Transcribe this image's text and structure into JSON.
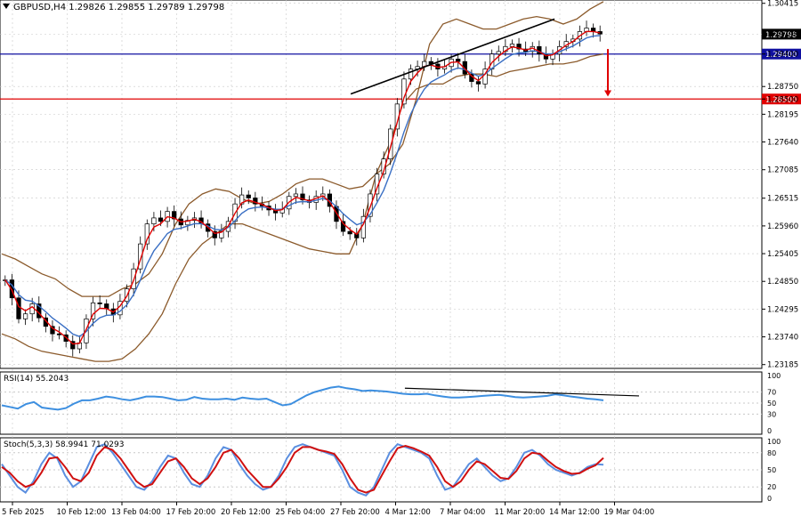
{
  "header": {
    "symbol_line": "GBPUSD,H4  1.29826 1.29855 1.29789 1.29798"
  },
  "colors": {
    "bg": "#ffffff",
    "grid": "#c8c8c8",
    "candle": "#000000",
    "ema_fast": "#e00000",
    "ema_slow": "#3a6fc4",
    "bollinger": "#8b5a2b",
    "resistance": "#1010a0",
    "support": "#e00000",
    "trend": "#000000",
    "rsi": "#3d8fe0",
    "stoch_main": "#5b8fe0",
    "stoch_signal": "#d01010",
    "price_tag_current": "#000000",
    "price_tag_blue": "#1010a0",
    "price_tag_red": "#e00000"
  },
  "chart_data": [
    {
      "type": "candlestick",
      "title": "GBPUSD,H4",
      "ohlc_last": {
        "open": 1.29826,
        "high": 1.29855,
        "low": 1.29789,
        "close": 1.29798
      },
      "ylim": [
        1.2318,
        1.3041
      ],
      "y_ticks": [
        "1.30415",
        "1.29798",
        "1.29400",
        "1.28750",
        "1.28500",
        "1.28195",
        "1.27640",
        "1.27085",
        "1.26515",
        "1.25960",
        "1.25405",
        "1.24850",
        "1.24295",
        "1.23740",
        "1.23185"
      ],
      "x_ticks": [
        "5 Feb 2025",
        "10 Feb 12:00",
        "13 Feb 04:00",
        "17 Feb 20:00",
        "20 Feb 12:00",
        "25 Feb 04:00",
        "27 Feb 20:00",
        "4 Mar 12:00",
        "7 Mar 04:00",
        "11 Mar 20:00",
        "14 Mar 12:00",
        "19 Mar 04:00"
      ],
      "close_path": [
        1.2488,
        1.2452,
        1.241,
        1.242,
        1.244,
        1.2412,
        1.2395,
        1.238,
        1.2378,
        1.2365,
        1.235,
        1.2362,
        1.241,
        1.2442,
        1.244,
        1.243,
        1.2418,
        1.2445,
        1.247,
        1.251,
        1.256,
        1.26,
        1.2612,
        1.2605,
        1.2625,
        1.261,
        1.2598,
        1.2607,
        1.2612,
        1.26,
        1.2585,
        1.2572,
        1.2585,
        1.2605,
        1.264,
        1.2658,
        1.2652,
        1.264,
        1.2636,
        1.2628,
        1.2622,
        1.263,
        1.2655,
        1.266,
        1.2648,
        1.2643,
        1.2655,
        1.266,
        1.2635,
        1.2605,
        1.2585,
        1.258,
        1.2572,
        1.2615,
        1.266,
        1.27,
        1.273,
        1.279,
        1.284,
        1.289,
        1.291,
        1.2915,
        1.2925,
        1.292,
        1.291,
        1.2915,
        1.293,
        1.2925,
        1.29,
        1.2885,
        1.288,
        1.291,
        1.294,
        1.2945,
        1.2955,
        1.296,
        1.295,
        1.2945,
        1.2955,
        1.294,
        1.293,
        1.294,
        1.2955,
        1.2965,
        1.297,
        1.2985,
        1.2992,
        1.2985,
        1.298
      ],
      "bollinger_upper_path": [
        1.254,
        1.253,
        1.2515,
        1.25,
        1.249,
        1.247,
        1.2455,
        1.2455,
        1.2455,
        1.247,
        1.248,
        1.25,
        1.254,
        1.26,
        1.264,
        1.266,
        1.267,
        1.2665,
        1.265,
        1.264,
        1.2645,
        1.266,
        1.268,
        1.269,
        1.269,
        1.268,
        1.267,
        1.2675,
        1.27,
        1.272,
        1.276,
        1.285,
        1.296,
        1.3,
        1.301,
        1.3,
        1.299,
        1.299,
        1.3,
        1.301,
        1.3015,
        1.301,
        1.3,
        1.301,
        1.303,
        1.3045
      ],
      "bollinger_lower_path": [
        1.238,
        1.237,
        1.2355,
        1.2345,
        1.234,
        1.2335,
        1.233,
        1.2325,
        1.2325,
        1.233,
        1.235,
        1.238,
        1.242,
        1.248,
        1.253,
        1.256,
        1.258,
        1.26,
        1.26,
        1.259,
        1.258,
        1.257,
        1.256,
        1.255,
        1.2545,
        1.254,
        1.254,
        1.26,
        1.27,
        1.276,
        1.284,
        1.287,
        1.288,
        1.288,
        1.2895,
        1.29,
        1.29,
        1.2895,
        1.2905,
        1.291,
        1.2915,
        1.292,
        1.292,
        1.2925,
        1.2935,
        1.294
      ],
      "levels": [
        {
          "label": "1.29400",
          "value": 1.294,
          "color_key": "resistance"
        },
        {
          "label": "1.28500",
          "value": 1.285,
          "color_key": "support"
        }
      ],
      "current_price": {
        "label": "1.29798",
        "value": 1.29798
      },
      "trendline": {
        "from": {
          "index": 0.58,
          "value": 1.286
        },
        "to": {
          "index": 0.83,
          "value": 1.301
        }
      },
      "arrow": {
        "from_value": 1.295,
        "to_value": 1.2855,
        "color_key": "support"
      }
    },
    {
      "type": "line",
      "title": "RSI(14) 55.2043",
      "ylim": [
        0,
        100
      ],
      "y_ticks": [
        "100",
        "70",
        "50",
        "30",
        "0"
      ],
      "levels": [
        70,
        50,
        30
      ],
      "values": [
        46,
        43,
        40,
        48,
        52,
        42,
        40,
        38,
        41,
        49,
        55,
        55,
        58,
        62,
        60,
        57,
        55,
        58,
        62,
        62,
        61,
        58,
        55,
        56,
        61,
        58,
        57,
        57,
        58,
        56,
        60,
        58,
        57,
        58,
        52,
        46,
        48,
        56,
        64,
        70,
        74,
        78,
        80,
        77,
        75,
        72,
        73,
        72,
        71,
        69,
        67,
        66,
        66,
        67,
        64,
        62,
        60,
        60,
        61,
        62,
        63,
        64,
        65,
        63,
        61,
        60,
        61,
        62,
        63,
        66,
        64,
        62,
        60,
        58,
        57,
        55
      ],
      "trendline": {
        "from_value": 77,
        "to_value": 63
      }
    },
    {
      "type": "line",
      "title": "Stoch(5,3,3) 58.9941 71.0293",
      "ylim": [
        0,
        100
      ],
      "y_ticks": [
        "100",
        "80",
        "50",
        "20",
        "0"
      ],
      "levels": [
        80,
        50,
        20
      ],
      "series": [
        {
          "name": "main",
          "values": [
            60,
            40,
            20,
            10,
            30,
            60,
            80,
            70,
            40,
            20,
            30,
            60,
            90,
            95,
            80,
            60,
            40,
            20,
            15,
            30,
            55,
            75,
            70,
            45,
            25,
            20,
            40,
            70,
            90,
            85,
            60,
            40,
            25,
            15,
            20,
            40,
            70,
            90,
            95,
            90,
            85,
            80,
            75,
            50,
            20,
            10,
            5,
            20,
            50,
            80,
            95,
            90,
            85,
            80,
            70,
            40,
            15,
            20,
            40,
            60,
            70,
            55,
            40,
            30,
            35,
            55,
            80,
            85,
            75,
            60,
            50,
            45,
            40,
            45,
            55,
            60,
            59
          ]
        },
        {
          "name": "signal",
          "values": [
            55,
            45,
            30,
            20,
            25,
            45,
            70,
            72,
            55,
            35,
            30,
            45,
            75,
            90,
            85,
            70,
            50,
            30,
            20,
            25,
            45,
            65,
            70,
            55,
            35,
            25,
            35,
            55,
            80,
            85,
            70,
            50,
            35,
            20,
            20,
            35,
            55,
            80,
            90,
            90,
            85,
            82,
            78,
            60,
            35,
            15,
            10,
            15,
            40,
            65,
            88,
            92,
            88,
            82,
            75,
            55,
            30,
            20,
            30,
            50,
            65,
            60,
            48,
            36,
            34,
            48,
            70,
            80,
            78,
            66,
            55,
            48,
            43,
            44,
            52,
            58,
            71
          ]
        }
      ]
    }
  ]
}
